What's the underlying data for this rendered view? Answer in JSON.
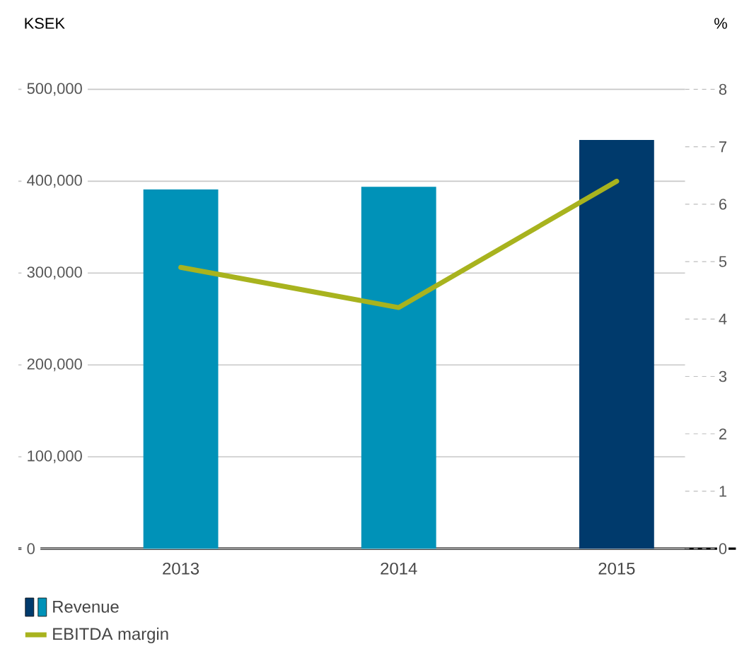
{
  "chart_data": {
    "type": "bar",
    "categories": [
      "2013",
      "2014",
      "2015"
    ],
    "ylabel": "KSEK",
    "y2label": "%",
    "ylim": [
      0,
      500000
    ],
    "yticks": [
      {
        "value": 0,
        "label": "0"
      },
      {
        "value": 100000,
        "label": "100,000"
      },
      {
        "value": 200000,
        "label": "200,000"
      },
      {
        "value": 300000,
        "label": "300,000"
      },
      {
        "value": 400000,
        "label": "400,000"
      },
      {
        "value": 500000,
        "label": "500,000"
      }
    ],
    "y2lim": [
      0,
      8
    ],
    "y2ticks": [
      0,
      1,
      2,
      3,
      4,
      5,
      6,
      7,
      8
    ],
    "grid": "y",
    "legend": "bottom",
    "line_style": "solid",
    "series": [
      {
        "name": "Revenue",
        "colors": [
          "#0092b8",
          "#0092b8",
          "#003a6c"
        ],
        "values": [
          391000,
          394000,
          445000
        ]
      },
      {
        "name": "EBITDA margin",
        "type": "line",
        "axis": "y2",
        "color": "#a8b31e",
        "values": [
          4.9,
          4.2,
          6.4
        ]
      }
    ]
  }
}
